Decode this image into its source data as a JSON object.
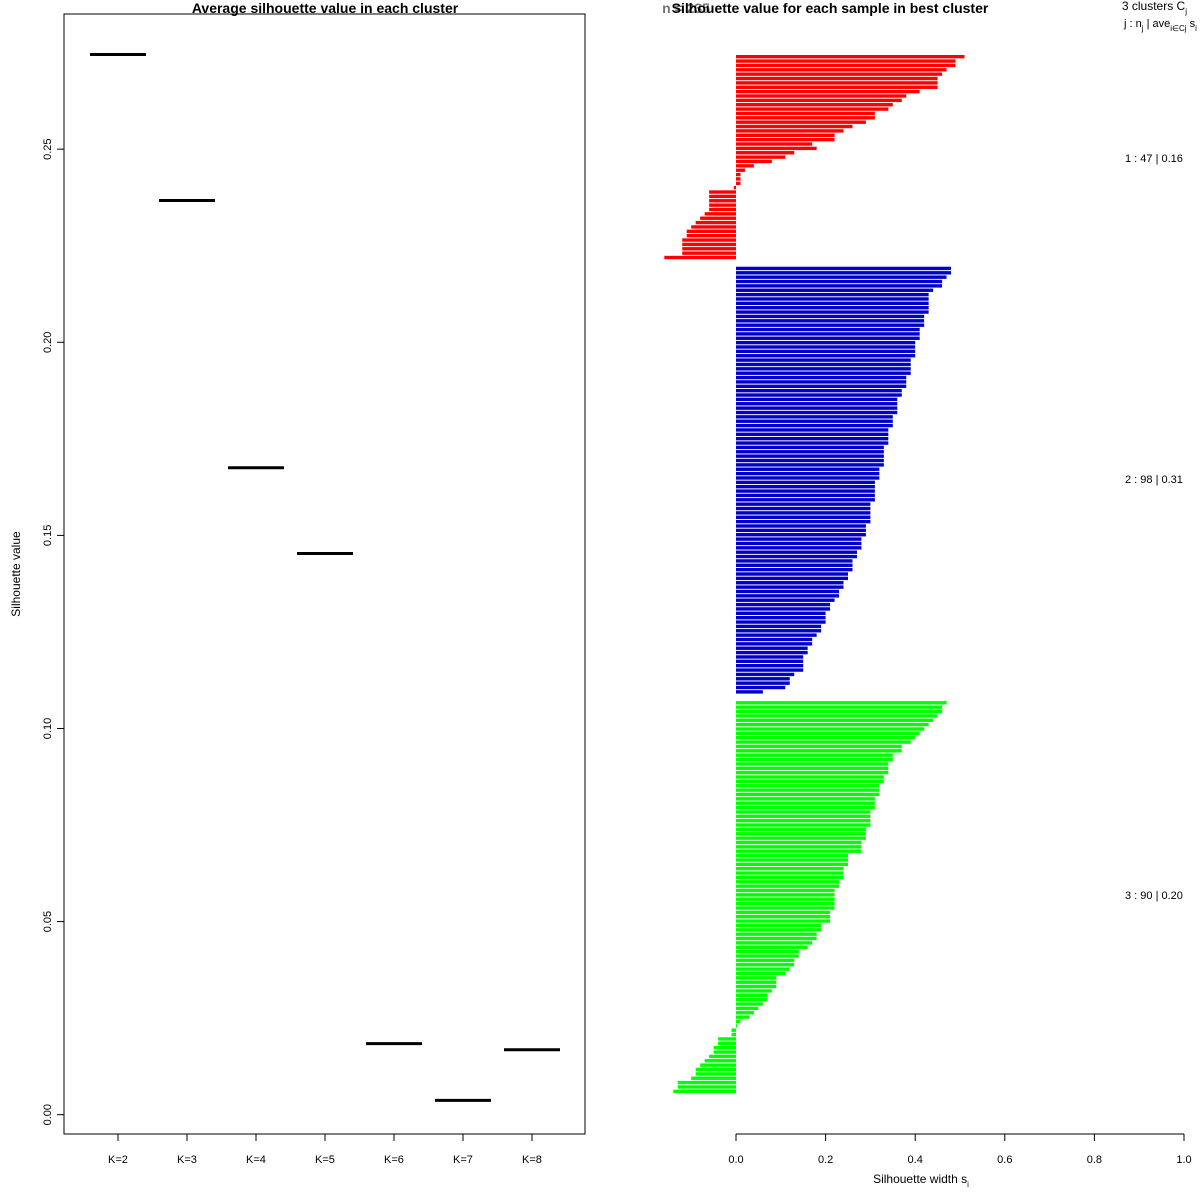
{
  "chart_data": [
    {
      "type": "line",
      "title": "Average silhouette value in each cluster",
      "xlabel": "",
      "ylabel": "Silhouette value",
      "categories": [
        "K=2",
        "K=3",
        "K=4",
        "K=5",
        "K=6",
        "K=7",
        "K=8"
      ],
      "values": [
        0.2745,
        0.2367,
        0.1675,
        0.1453,
        0.0184,
        0.0037,
        0.0168
      ],
      "ylim": [
        -0.005,
        0.285
      ],
      "yticks": [
        "0.00",
        "0.05",
        "0.10",
        "0.15",
        "0.20",
        "0.25"
      ]
    },
    {
      "type": "bar",
      "title": "Silhouette value for each sample in best cluster",
      "title_overlay": "n = 235",
      "xlabel": "Silhouette width s",
      "xlabel_sub": "i",
      "xlim": [
        0,
        1
      ],
      "xticks": [
        "0.0",
        "0.2",
        "0.4",
        "0.6",
        "0.8",
        "1.0"
      ],
      "legend_header": "3 clusters C",
      "legend_header_sub": "j",
      "legend_subheader": "j : n",
      "legend_subheader_sub": "j",
      "legend_subheader_rest": " | ave",
      "legend_subheader_sub2": "i∈Cj",
      "legend_subheader_tail": " s",
      "legend_subheader_tail_sub": "i",
      "clusters": [
        {
          "name": "1",
          "n": 47,
          "label": "1 :  47  |  0.16",
          "color": "#ff0000",
          "values": [
            0.51,
            0.49,
            0.49,
            0.47,
            0.46,
            0.45,
            0.45,
            0.45,
            0.41,
            0.38,
            0.37,
            0.35,
            0.34,
            0.31,
            0.31,
            0.29,
            0.26,
            0.24,
            0.22,
            0.22,
            0.17,
            0.18,
            0.13,
            0.11,
            0.08,
            0.04,
            0.02,
            0.01,
            0.01,
            0.01,
            -0.005,
            -0.06,
            -0.06,
            -0.06,
            -0.06,
            -0.06,
            -0.07,
            -0.08,
            -0.09,
            -0.1,
            -0.11,
            -0.11,
            -0.12,
            -0.12,
            -0.12,
            -0.12,
            -0.16
          ]
        },
        {
          "name": "2",
          "n": 98,
          "label": "2 :  98  |  0.31",
          "color": "#0000c8",
          "values": [
            0.48,
            0.48,
            0.47,
            0.46,
            0.46,
            0.44,
            0.43,
            0.43,
            0.43,
            0.43,
            0.43,
            0.42,
            0.42,
            0.42,
            0.41,
            0.41,
            0.41,
            0.4,
            0.4,
            0.4,
            0.4,
            0.39,
            0.39,
            0.39,
            0.39,
            0.38,
            0.38,
            0.38,
            0.37,
            0.37,
            0.36,
            0.36,
            0.36,
            0.36,
            0.35,
            0.35,
            0.35,
            0.34,
            0.34,
            0.34,
            0.34,
            0.33,
            0.33,
            0.33,
            0.33,
            0.33,
            0.32,
            0.32,
            0.32,
            0.31,
            0.31,
            0.31,
            0.31,
            0.31,
            0.3,
            0.3,
            0.3,
            0.3,
            0.3,
            0.29,
            0.29,
            0.29,
            0.28,
            0.28,
            0.28,
            0.27,
            0.27,
            0.26,
            0.26,
            0.26,
            0.25,
            0.25,
            0.24,
            0.24,
            0.23,
            0.23,
            0.22,
            0.21,
            0.21,
            0.2,
            0.2,
            0.2,
            0.19,
            0.19,
            0.18,
            0.17,
            0.17,
            0.16,
            0.16,
            0.15,
            0.15,
            0.15,
            0.15,
            0.13,
            0.12,
            0.12,
            0.11,
            0.06
          ]
        },
        {
          "name": "3",
          "n": 90,
          "label": "3 :  90  |  0.20",
          "color": "#00ff00",
          "values": [
            0.47,
            0.46,
            0.46,
            0.45,
            0.44,
            0.43,
            0.42,
            0.41,
            0.4,
            0.39,
            0.37,
            0.37,
            0.35,
            0.35,
            0.34,
            0.34,
            0.34,
            0.33,
            0.33,
            0.32,
            0.32,
            0.32,
            0.31,
            0.31,
            0.31,
            0.3,
            0.3,
            0.3,
            0.3,
            0.29,
            0.29,
            0.29,
            0.28,
            0.28,
            0.28,
            0.25,
            0.25,
            0.25,
            0.24,
            0.24,
            0.24,
            0.23,
            0.23,
            0.22,
            0.22,
            0.22,
            0.22,
            0.22,
            0.21,
            0.21,
            0.21,
            0.19,
            0.19,
            0.18,
            0.18,
            0.17,
            0.16,
            0.14,
            0.14,
            0.13,
            0.13,
            0.12,
            0.11,
            0.09,
            0.09,
            0.09,
            0.08,
            0.07,
            0.07,
            0.06,
            0.05,
            0.04,
            0.03,
            0.01,
            0.0,
            -0.01,
            -0.01,
            -0.04,
            -0.04,
            -0.05,
            -0.05,
            -0.06,
            -0.07,
            -0.08,
            -0.09,
            -0.09,
            -0.1,
            -0.13,
            -0.13,
            -0.14
          ]
        }
      ]
    }
  ]
}
